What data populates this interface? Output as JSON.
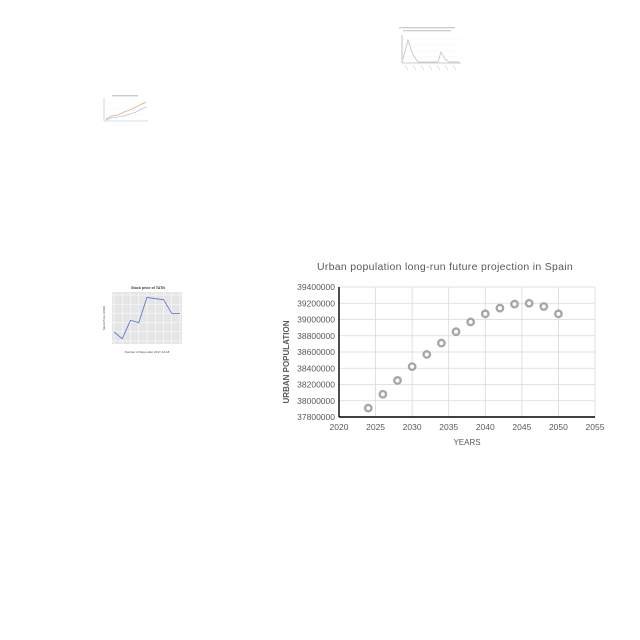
{
  "chart_data": [
    {
      "type": "scatter",
      "title": "Urban population long-run future projection in Spain",
      "xlabel": "YEARS",
      "ylabel": "URBAN POPULATION",
      "xlim": [
        2020,
        2055
      ],
      "ylim": [
        37800000,
        39400000
      ],
      "xticks": [
        "2020",
        "2025",
        "2030",
        "2035",
        "2040",
        "2045",
        "2050",
        "2055"
      ],
      "yticks": [
        "37800000",
        "38000000",
        "38200000",
        "38400000",
        "38600000",
        "38800000",
        "39000000",
        "39200000",
        "39400000"
      ],
      "x": [
        2024,
        2026,
        2028,
        2030,
        2032,
        2034,
        2036,
        2038,
        2040,
        2042,
        2044,
        2046,
        2048,
        2050
      ],
      "y": [
        37910000,
        38080000,
        38250000,
        38420000,
        38570000,
        38710000,
        38850000,
        38970000,
        39070000,
        39140000,
        39190000,
        39200000,
        39160000,
        39070000
      ],
      "grid": true,
      "marker_color": "#a6a6a6"
    },
    {
      "type": "line",
      "title": "Stock price of TATN",
      "xlabel": "Number of Days after 2017-10-18",
      "ylabel": "Stock Price (USD)",
      "x": [
        0,
        1,
        2,
        3,
        4,
        5,
        6,
        7,
        8
      ],
      "y": [
        0.2,
        0.05,
        0.45,
        0.4,
        0.95,
        0.92,
        0.9,
        0.6,
        0.6
      ],
      "grid": true,
      "line_color": "#4a6fd1"
    }
  ]
}
